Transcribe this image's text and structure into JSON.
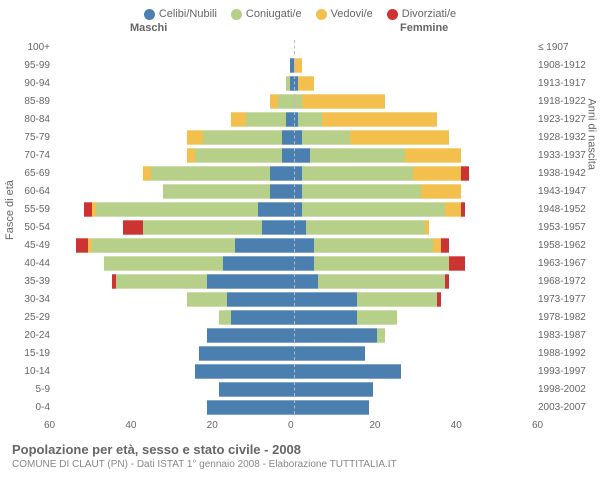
{
  "legend": [
    {
      "label": "Celibi/Nubili",
      "color": "#4a7fb0"
    },
    {
      "label": "Coniugati/e",
      "color": "#b6d089"
    },
    {
      "label": "Vedovi/e",
      "color": "#f3c04e"
    },
    {
      "label": "Divorziati/e",
      "color": "#cc3333"
    }
  ],
  "header_m": "Maschi",
  "header_f": "Femmine",
  "yaxis_left": "Fasce di età",
  "yaxis_right": "Anni di nascita",
  "title": "Popolazione per età, sesso e stato civile - 2008",
  "subtitle": "COMUNE DI CLAUT (PN) - Dati ISTAT 1° gennaio 2008 - Elaborazione TUTTITALIA.IT",
  "xmax": 60,
  "xticks": [
    60,
    40,
    20,
    0,
    20,
    40,
    60
  ],
  "grid_color": "#e5e5e5",
  "background_color": "#ffffff",
  "rows": [
    {
      "age": "100+",
      "birth": "≤ 1907",
      "m": {
        "c": 0,
        "sp": 0,
        "v": 0,
        "d": 0
      },
      "f": {
        "c": 0,
        "sp": 0,
        "v": 0,
        "d": 0
      }
    },
    {
      "age": "95-99",
      "birth": "1908-1912",
      "m": {
        "c": 1,
        "sp": 0,
        "v": 0,
        "d": 0
      },
      "f": {
        "c": 0,
        "sp": 0,
        "v": 2,
        "d": 0
      }
    },
    {
      "age": "90-94",
      "birth": "1913-1917",
      "m": {
        "c": 1,
        "sp": 1,
        "v": 0,
        "d": 0
      },
      "f": {
        "c": 1,
        "sp": 0,
        "v": 4,
        "d": 0
      }
    },
    {
      "age": "85-89",
      "birth": "1918-1922",
      "m": {
        "c": 0,
        "sp": 4,
        "v": 2,
        "d": 0
      },
      "f": {
        "c": 0,
        "sp": 2,
        "v": 21,
        "d": 0
      }
    },
    {
      "age": "80-84",
      "birth": "1923-1927",
      "m": {
        "c": 2,
        "sp": 10,
        "v": 4,
        "d": 0
      },
      "f": {
        "c": 1,
        "sp": 6,
        "v": 29,
        "d": 0
      }
    },
    {
      "age": "75-79",
      "birth": "1928-1932",
      "m": {
        "c": 3,
        "sp": 20,
        "v": 4,
        "d": 0
      },
      "f": {
        "c": 2,
        "sp": 12,
        "v": 25,
        "d": 0
      }
    },
    {
      "age": "70-74",
      "birth": "1933-1937",
      "m": {
        "c": 3,
        "sp": 22,
        "v": 2,
        "d": 0
      },
      "f": {
        "c": 4,
        "sp": 24,
        "v": 14,
        "d": 0
      }
    },
    {
      "age": "65-69",
      "birth": "1938-1942",
      "m": {
        "c": 6,
        "sp": 30,
        "v": 2,
        "d": 0
      },
      "f": {
        "c": 2,
        "sp": 28,
        "v": 12,
        "d": 2
      }
    },
    {
      "age": "60-64",
      "birth": "1943-1947",
      "m": {
        "c": 6,
        "sp": 27,
        "v": 0,
        "d": 0
      },
      "f": {
        "c": 2,
        "sp": 30,
        "v": 10,
        "d": 0
      }
    },
    {
      "age": "55-59",
      "birth": "1948-1952",
      "m": {
        "c": 9,
        "sp": 41,
        "v": 1,
        "d": 2
      },
      "f": {
        "c": 2,
        "sp": 36,
        "v": 4,
        "d": 1
      }
    },
    {
      "age": "50-54",
      "birth": "1953-1957",
      "m": {
        "c": 8,
        "sp": 30,
        "v": 0,
        "d": 5
      },
      "f": {
        "c": 3,
        "sp": 30,
        "v": 1,
        "d": 0
      }
    },
    {
      "age": "45-49",
      "birth": "1958-1962",
      "m": {
        "c": 15,
        "sp": 36,
        "v": 1,
        "d": 3
      },
      "f": {
        "c": 5,
        "sp": 30,
        "v": 2,
        "d": 2
      }
    },
    {
      "age": "40-44",
      "birth": "1963-1967",
      "m": {
        "c": 18,
        "sp": 30,
        "v": 0,
        "d": 0
      },
      "f": {
        "c": 5,
        "sp": 34,
        "v": 0,
        "d": 4
      }
    },
    {
      "age": "35-39",
      "birth": "1968-1972",
      "m": {
        "c": 22,
        "sp": 23,
        "v": 0,
        "d": 1
      },
      "f": {
        "c": 6,
        "sp": 32,
        "v": 0,
        "d": 1
      }
    },
    {
      "age": "30-34",
      "birth": "1973-1977",
      "m": {
        "c": 17,
        "sp": 10,
        "v": 0,
        "d": 0
      },
      "f": {
        "c": 16,
        "sp": 20,
        "v": 0,
        "d": 1
      }
    },
    {
      "age": "25-29",
      "birth": "1978-1982",
      "m": {
        "c": 16,
        "sp": 3,
        "v": 0,
        "d": 0
      },
      "f": {
        "c": 16,
        "sp": 10,
        "v": 0,
        "d": 0
      }
    },
    {
      "age": "20-24",
      "birth": "1983-1987",
      "m": {
        "c": 22,
        "sp": 0,
        "v": 0,
        "d": 0
      },
      "f": {
        "c": 21,
        "sp": 2,
        "v": 0,
        "d": 0
      }
    },
    {
      "age": "15-19",
      "birth": "1988-1992",
      "m": {
        "c": 24,
        "sp": 0,
        "v": 0,
        "d": 0
      },
      "f": {
        "c": 18,
        "sp": 0,
        "v": 0,
        "d": 0
      }
    },
    {
      "age": "10-14",
      "birth": "1993-1997",
      "m": {
        "c": 25,
        "sp": 0,
        "v": 0,
        "d": 0
      },
      "f": {
        "c": 27,
        "sp": 0,
        "v": 0,
        "d": 0
      }
    },
    {
      "age": "5-9",
      "birth": "1998-2002",
      "m": {
        "c": 19,
        "sp": 0,
        "v": 0,
        "d": 0
      },
      "f": {
        "c": 20,
        "sp": 0,
        "v": 0,
        "d": 0
      }
    },
    {
      "age": "0-4",
      "birth": "2003-2007",
      "m": {
        "c": 22,
        "sp": 0,
        "v": 0,
        "d": 0
      },
      "f": {
        "c": 19,
        "sp": 0,
        "v": 0,
        "d": 0
      }
    }
  ]
}
